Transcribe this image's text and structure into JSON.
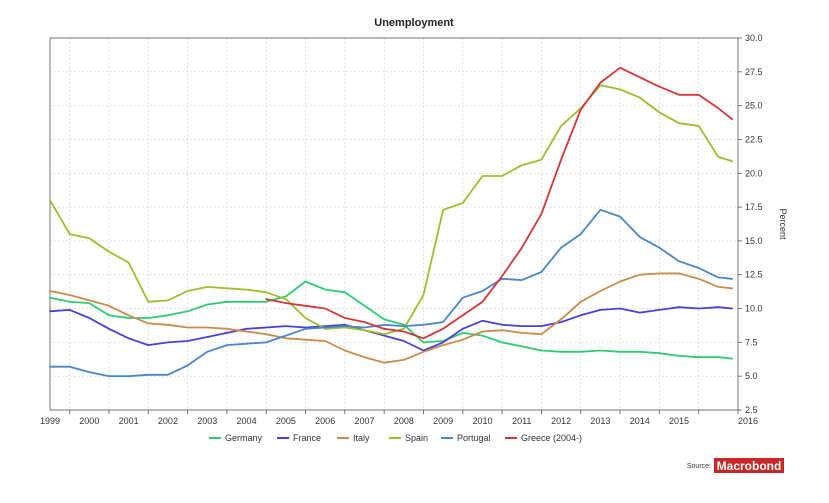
{
  "chart_data": {
    "type": "line",
    "title": "Unemployment",
    "ylabel": "Percent",
    "xlabel": "",
    "xlim": [
      1998.5,
      2016.0
    ],
    "ylim": [
      2.5,
      30.0
    ],
    "yticks": [
      2.5,
      5.0,
      7.5,
      10.0,
      12.5,
      15.0,
      17.5,
      20.0,
      22.5,
      25.0,
      27.5,
      30.0
    ],
    "ytick_labels": [
      "2.5",
      "5.0",
      "7.5",
      "10.0",
      "12.5",
      "15.0",
      "17.5",
      "20.0",
      "22.5",
      "25.0",
      "27.5",
      "30.0"
    ],
    "xtick_labels": [
      "1999",
      "2000",
      "2001",
      "2002",
      "2003",
      "2004",
      "2005",
      "2006",
      "2007",
      "2008",
      "2009",
      "2010",
      "2011",
      "2012",
      "2013",
      "2014",
      "2015",
      "2016"
    ],
    "grid": true,
    "legend_position": "bottom",
    "source_label": "Source:",
    "source_brand": "Macrobond",
    "series": [
      {
        "name": "Germany",
        "color": "#2ecc71",
        "x": [
          1998.5,
          1999,
          1999.5,
          2000,
          2000.5,
          2001,
          2001.5,
          2002,
          2002.5,
          2003,
          2003.5,
          2004,
          2004.5,
          2005,
          2005.5,
          2006,
          2006.5,
          2007,
          2007.5,
          2008,
          2008.5,
          2009,
          2009.5,
          2010,
          2010.5,
          2011,
          2011.5,
          2012,
          2012.5,
          2013,
          2013.5,
          2014,
          2014.5,
          2015,
          2015.5,
          2015.85
        ],
        "y": [
          10.8,
          10.5,
          10.4,
          9.5,
          9.3,
          9.3,
          9.5,
          9.8,
          10.3,
          10.5,
          10.5,
          10.5,
          10.9,
          12.0,
          11.4,
          11.2,
          10.2,
          9.2,
          8.8,
          7.5,
          7.6,
          8.2,
          8.0,
          7.5,
          7.2,
          6.9,
          6.8,
          6.8,
          6.9,
          6.8,
          6.8,
          6.7,
          6.5,
          6.4,
          6.4,
          6.3
        ]
      },
      {
        "name": "France",
        "color": "#4a3fd6",
        "x": [
          1998.5,
          1999,
          1999.5,
          2000,
          2000.5,
          2001,
          2001.5,
          2002,
          2002.5,
          2003,
          2003.5,
          2004,
          2004.5,
          2005,
          2005.5,
          2006,
          2006.5,
          2007,
          2007.5,
          2008,
          2008.5,
          2009,
          2009.5,
          2010,
          2010.5,
          2011,
          2011.5,
          2012,
          2012.5,
          2013,
          2013.5,
          2014,
          2014.5,
          2015,
          2015.5,
          2015.85
        ],
        "y": [
          9.8,
          9.9,
          9.3,
          8.5,
          7.8,
          7.3,
          7.5,
          7.6,
          7.9,
          8.2,
          8.5,
          8.6,
          8.7,
          8.6,
          8.7,
          8.8,
          8.4,
          8.0,
          7.6,
          6.9,
          7.5,
          8.5,
          9.1,
          8.8,
          8.7,
          8.7,
          9.0,
          9.5,
          9.9,
          10.0,
          9.7,
          9.9,
          10.1,
          10.0,
          10.1,
          10.0
        ]
      },
      {
        "name": "Italy",
        "color": "#c98a4b",
        "x": [
          1998.5,
          1999,
          1999.5,
          2000,
          2000.5,
          2001,
          2001.5,
          2002,
          2002.5,
          2003,
          2003.5,
          2004,
          2004.5,
          2005,
          2005.5,
          2006,
          2006.5,
          2007,
          2007.5,
          2008,
          2008.5,
          2009,
          2009.5,
          2010,
          2010.5,
          2011,
          2011.5,
          2012,
          2012.5,
          2013,
          2013.5,
          2014,
          2014.5,
          2015,
          2015.5,
          2015.85
        ],
        "y": [
          11.3,
          11.0,
          10.6,
          10.2,
          9.5,
          8.9,
          8.8,
          8.6,
          8.6,
          8.5,
          8.3,
          8.1,
          7.8,
          7.7,
          7.6,
          6.9,
          6.4,
          6.0,
          6.2,
          6.8,
          7.3,
          7.7,
          8.3,
          8.4,
          8.2,
          8.1,
          9.2,
          10.5,
          11.3,
          12.0,
          12.5,
          12.6,
          12.6,
          12.2,
          11.6,
          11.5
        ]
      },
      {
        "name": "Spain",
        "color": "#9ebd2e",
        "x": [
          1998.5,
          1999,
          1999.5,
          2000,
          2000.5,
          2001,
          2001.5,
          2002,
          2002.5,
          2003,
          2003.5,
          2004,
          2004.5,
          2005,
          2005.5,
          2006,
          2006.5,
          2007,
          2007.5,
          2008,
          2008.5,
          2009,
          2009.5,
          2010,
          2010.5,
          2011,
          2011.5,
          2012,
          2012.5,
          2013,
          2013.5,
          2014,
          2014.5,
          2015,
          2015.5,
          2015.85
        ],
        "y": [
          18.0,
          15.5,
          15.2,
          14.2,
          13.4,
          10.5,
          10.6,
          11.3,
          11.6,
          11.5,
          11.4,
          11.2,
          10.7,
          9.3,
          8.5,
          8.6,
          8.4,
          8.1,
          8.5,
          11.0,
          17.3,
          17.8,
          19.8,
          19.8,
          20.6,
          21.0,
          23.5,
          24.8,
          26.5,
          26.2,
          25.6,
          24.5,
          23.7,
          23.5,
          21.2,
          20.9
        ]
      },
      {
        "name": "Portugal",
        "color": "#4a86c8",
        "x": [
          1998.5,
          1999,
          1999.5,
          2000,
          2000.5,
          2001,
          2001.5,
          2002,
          2002.5,
          2003,
          2003.5,
          2004,
          2004.5,
          2005,
          2005.5,
          2006,
          2006.5,
          2007,
          2007.5,
          2008,
          2008.5,
          2009,
          2009.5,
          2010,
          2010.5,
          2011,
          2011.5,
          2012,
          2012.5,
          2013,
          2013.5,
          2014,
          2014.5,
          2015,
          2015.5,
          2015.85
        ],
        "y": [
          5.7,
          5.7,
          5.3,
          5.0,
          5.0,
          5.1,
          5.1,
          5.8,
          6.8,
          7.3,
          7.4,
          7.5,
          8.0,
          8.5,
          8.6,
          8.7,
          8.6,
          8.8,
          8.7,
          8.8,
          9.0,
          10.8,
          11.3,
          12.2,
          12.1,
          12.7,
          14.5,
          15.5,
          17.3,
          16.8,
          15.3,
          14.5,
          13.5,
          13.0,
          12.3,
          12.2
        ]
      },
      {
        "name": "Greece (2004-)",
        "color": "#d0363a",
        "x": [
          2004,
          2004.5,
          2005,
          2005.5,
          2006,
          2006.5,
          2007,
          2007.5,
          2008,
          2008.5,
          2009,
          2009.5,
          2010,
          2010.5,
          2011,
          2011.5,
          2012,
          2012.5,
          2013,
          2013.5,
          2014,
          2014.5,
          2015,
          2015.5,
          2015.85
        ],
        "y": [
          10.7,
          10.4,
          10.2,
          10.0,
          9.3,
          9.0,
          8.5,
          8.3,
          7.8,
          8.5,
          9.5,
          10.5,
          12.4,
          14.5,
          17.0,
          21.0,
          24.7,
          26.7,
          27.8,
          27.1,
          26.4,
          25.8,
          25.8,
          24.8,
          24.0
        ]
      }
    ]
  }
}
